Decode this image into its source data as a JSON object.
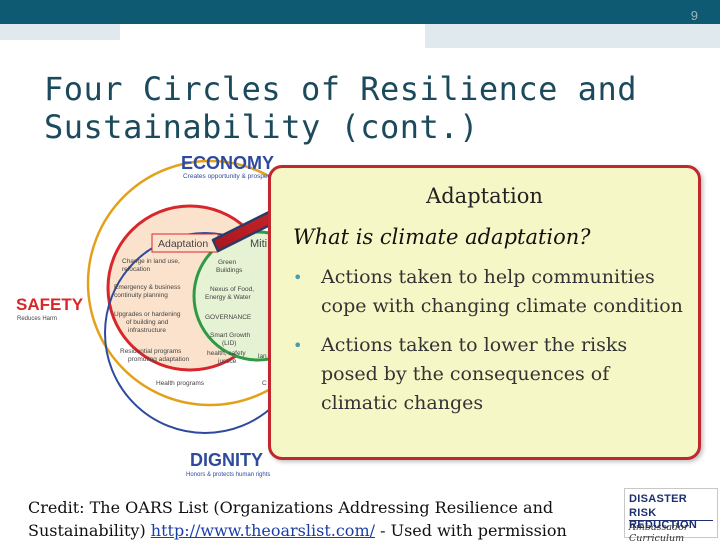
{
  "slide_number": "9",
  "title_line1": "Four Circles of Resilience and",
  "title_line2": "Sustainability (cont.)",
  "diagram": {
    "economy": {
      "title": "ECONOMY",
      "subtitle": "Creates opportunity & prosperity"
    },
    "safety": {
      "title": "SAFETY",
      "subtitle": "Reduces Harm"
    },
    "dignity": {
      "title": "DIGNITY",
      "subtitle": "Honors & protects human rights"
    },
    "adaptation_label": "Adaptation",
    "mitigation_label_partial": "Miti",
    "items": {
      "change_land_use": "Change in land use, relocation",
      "emergency": "Emergency & business continuity planning",
      "upgrades": "Upgrades or hardening of building and infrastructure",
      "residential": "Residential programs promoting adaptation",
      "health": "Health programs",
      "green": "Green Buildings",
      "nexus": "Nexus of Food, Energy & Water",
      "governance": "GOVERNANCE",
      "smart_growth": "Smart Growth (LID)",
      "health_safety": "health, safety justice",
      "lan": "lan",
      "c": "C"
    },
    "colors": {
      "economy": "#e3a11a",
      "safety": "#d8262b",
      "dignity": "#2e4a9e",
      "center": "#2e9a46"
    }
  },
  "callout": {
    "heading": "Adaptation",
    "question": "What is climate adaptation?",
    "bullets": [
      "Actions taken to help communities cope with changing climate condition",
      "Actions taken to lower the risks posed by the consequences of climatic changes"
    ],
    "border_color": "#c2272d",
    "background_color": "#f6f7c6"
  },
  "credit": {
    "prefix": "Credit: The OARS List (Organizations Addressing Resilience and Sustainability) ",
    "link": "http://www.theoarslist.com/",
    "suffix": " - Used with permission"
  },
  "logo": {
    "line1": "DISASTER",
    "line2": "RISK REDUCTION",
    "line3": "Ambassador Curriculum"
  }
}
